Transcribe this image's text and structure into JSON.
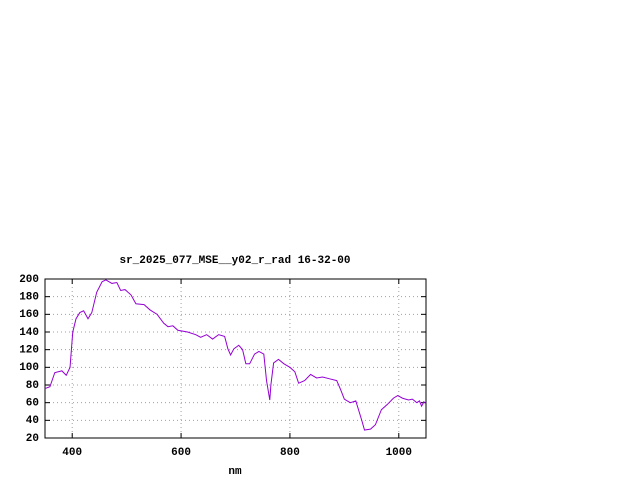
{
  "chart_data": {
    "type": "line",
    "title": "sr_2025_077_MSE__y02_r_rad 16-32-00",
    "x_label": "nm",
    "x": [
      350,
      359,
      368,
      381,
      389,
      396,
      401,
      407,
      414,
      421,
      429,
      436,
      445,
      455,
      462,
      473,
      482,
      489,
      497,
      508,
      517,
      532,
      543,
      556,
      568,
      576,
      585,
      594,
      612,
      627,
      636,
      647,
      658,
      669,
      680,
      686,
      691,
      697,
      706,
      713,
      719,
      726,
      735,
      743,
      752,
      757,
      763,
      765,
      770,
      779,
      789,
      800,
      809,
      816,
      827,
      838,
      849,
      860,
      873,
      886,
      893,
      900,
      911,
      921,
      932,
      937,
      948,
      957,
      968,
      979,
      990,
      998,
      1007,
      1018,
      1025,
      1033,
      1038,
      1042,
      1046,
      1050
    ],
    "series": [
      {
        "color": "#9400d3",
        "values": [
          76,
          78,
          94,
          96,
          91,
          100,
          140,
          155,
          162,
          164,
          155,
          162,
          185,
          197,
          199,
          195,
          196,
          187,
          188,
          182,
          172,
          171,
          165,
          160,
          150,
          146,
          147,
          142,
          140,
          137,
          134,
          137,
          132,
          137,
          135,
          121,
          114,
          121,
          125,
          120,
          104,
          104,
          115,
          118,
          115,
          85,
          63,
          80,
          105,
          109,
          104,
          100,
          95,
          82,
          85,
          92,
          88,
          89,
          87,
          85,
          75,
          64,
          60,
          62,
          40,
          29,
          30,
          35,
          52,
          58,
          65,
          68,
          65,
          63,
          64,
          60,
          62,
          56,
          61,
          59
        ]
      }
    ],
    "xlim": [
      350,
      1050
    ],
    "xticks": [
      400,
      600,
      800,
      1000
    ],
    "ylim": [
      20,
      200
    ],
    "yticks": [
      20,
      40,
      60,
      80,
      100,
      120,
      140,
      160,
      180,
      200
    ],
    "grid": true
  }
}
